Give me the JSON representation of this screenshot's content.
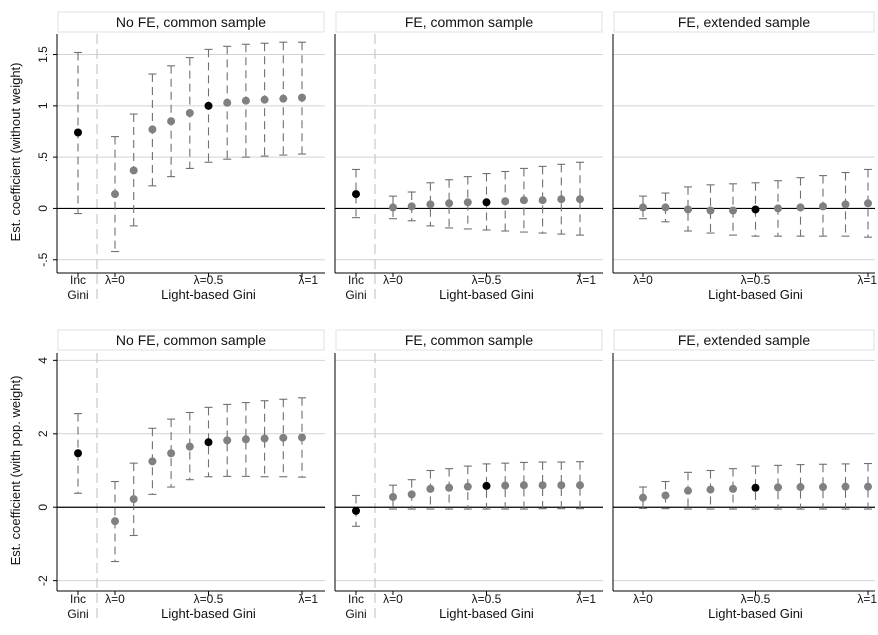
{
  "chart_data": {
    "type": "scatter",
    "layout": "2x3 panels of coefficient estimates with confidence intervals",
    "columns": [
      "No FE, common sample",
      "FE, common sample",
      "FE, extended sample"
    ],
    "rows": [
      {
        "ylabel": "Est. coefficient (without weight)",
        "ylim": [
          -0.6,
          1.7
        ],
        "yticks": [
          -0.5,
          0,
          0.5,
          1,
          1.5
        ],
        "ytick_labels": [
          "-.5",
          "0",
          ".5",
          "1",
          "1.5"
        ],
        "panels": [
          {
            "title": "No FE, common sample",
            "has_inc_gini": true,
            "inc": {
              "est": 0.74,
              "lo": -0.05,
              "hi": 1.52
            },
            "light": {
              "est": [
                0.14,
                0.37,
                0.77,
                0.85,
                0.93,
                1.0,
                1.03,
                1.05,
                1.06,
                1.07,
                1.08
              ],
              "lo": [
                -0.42,
                -0.17,
                0.22,
                0.31,
                0.39,
                0.45,
                0.48,
                0.5,
                0.51,
                0.52,
                0.53
              ],
              "hi": [
                0.7,
                0.92,
                1.31,
                1.39,
                1.47,
                1.55,
                1.58,
                1.6,
                1.61,
                1.62,
                1.62
              ]
            }
          },
          {
            "title": "FE, common sample",
            "has_inc_gini": true,
            "inc": {
              "est": 0.14,
              "lo": -0.09,
              "hi": 0.38
            },
            "light": {
              "est": [
                0.01,
                0.02,
                0.04,
                0.05,
                0.06,
                0.06,
                0.07,
                0.08,
                0.08,
                0.09,
                0.09
              ],
              "lo": [
                -0.1,
                -0.12,
                -0.17,
                -0.19,
                -0.2,
                -0.21,
                -0.22,
                -0.23,
                -0.24,
                -0.25,
                -0.26
              ],
              "hi": [
                0.12,
                0.16,
                0.25,
                0.28,
                0.31,
                0.34,
                0.36,
                0.39,
                0.41,
                0.43,
                0.45
              ]
            }
          },
          {
            "title": "FE, extended sample",
            "has_inc_gini": false,
            "light": {
              "est": [
                0.01,
                0.01,
                -0.01,
                -0.02,
                -0.02,
                -0.01,
                0.0,
                0.01,
                0.02,
                0.04,
                0.05
              ],
              "lo": [
                -0.1,
                -0.13,
                -0.22,
                -0.24,
                -0.26,
                -0.27,
                -0.27,
                -0.27,
                -0.27,
                -0.27,
                -0.28
              ],
              "hi": [
                0.12,
                0.15,
                0.21,
                0.23,
                0.24,
                0.25,
                0.27,
                0.3,
                0.32,
                0.35,
                0.38
              ]
            }
          }
        ]
      },
      {
        "ylabel": "Est. coefficient (with pop. weight)",
        "ylim": [
          -2.2,
          4.2
        ],
        "yticks": [
          -2,
          0,
          2,
          4
        ],
        "ytick_labels": [
          "-2",
          "0",
          "2",
          "4"
        ],
        "panels": [
          {
            "title": "No FE, common sample",
            "has_inc_gini": true,
            "inc": {
              "est": 1.47,
              "lo": 0.38,
              "hi": 2.55
            },
            "light": {
              "est": [
                -0.38,
                0.22,
                1.25,
                1.47,
                1.65,
                1.77,
                1.82,
                1.85,
                1.87,
                1.89,
                1.9
              ],
              "lo": [
                -1.48,
                -0.77,
                0.35,
                0.55,
                0.75,
                0.83,
                0.84,
                0.84,
                0.83,
                0.83,
                0.82
              ],
              "hi": [
                0.7,
                1.2,
                2.15,
                2.4,
                2.58,
                2.72,
                2.8,
                2.85,
                2.9,
                2.94,
                2.98
              ]
            }
          },
          {
            "title": "FE, common sample",
            "has_inc_gini": true,
            "inc": {
              "est": -0.1,
              "lo": -0.52,
              "hi": 0.32
            },
            "light": {
              "est": [
                0.28,
                0.35,
                0.5,
                0.53,
                0.56,
                0.58,
                0.59,
                0.6,
                0.6,
                0.6,
                0.6
              ],
              "lo": [
                -0.05,
                -0.05,
                -0.05,
                -0.05,
                -0.05,
                -0.05,
                -0.05,
                -0.05,
                -0.04,
                -0.04,
                -0.04
              ],
              "hi": [
                0.6,
                0.75,
                1.0,
                1.05,
                1.12,
                1.18,
                1.2,
                1.22,
                1.23,
                1.23,
                1.24
              ]
            }
          },
          {
            "title": "FE, extended sample",
            "has_inc_gini": false,
            "light": {
              "est": [
                0.26,
                0.32,
                0.45,
                0.48,
                0.5,
                0.53,
                0.54,
                0.55,
                0.55,
                0.56,
                0.56
              ],
              "lo": [
                -0.03,
                -0.04,
                -0.05,
                -0.05,
                -0.05,
                -0.05,
                -0.05,
                -0.05,
                -0.05,
                -0.05,
                -0.05
              ],
              "hi": [
                0.55,
                0.7,
                0.95,
                1.0,
                1.05,
                1.12,
                1.14,
                1.16,
                1.17,
                1.18,
                1.19
              ]
            }
          }
        ]
      }
    ],
    "lambda_values": [
      0,
      0.1,
      0.2,
      0.3,
      0.4,
      0.5,
      0.6,
      0.7,
      0.8,
      0.9,
      1.0
    ],
    "highlight_lambda": 0.5,
    "xtick_labels": {
      "inc_top": "Inc",
      "inc_bottom": "Gini",
      "lambda0": "λ=0",
      "lambda05": "λ=0.5",
      "lambda1": "λ=1"
    },
    "xlabel": "Light-based Gini",
    "colors": {
      "highlight": "#000000",
      "point": "#808080",
      "ci": "#707070",
      "gridline": "#d4d4d4",
      "zero_line": "#000000",
      "separator": "#c8c8c8",
      "title_border": "#e0e0e0"
    }
  }
}
